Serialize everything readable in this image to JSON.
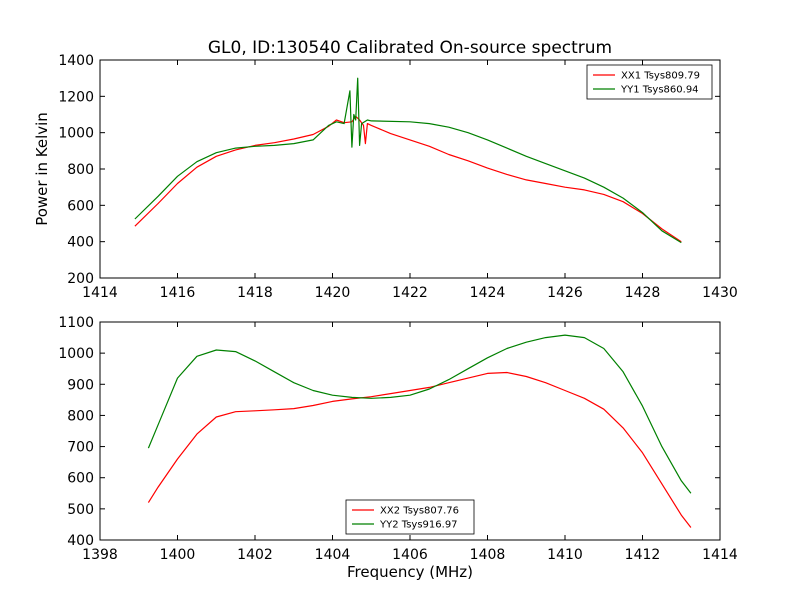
{
  "chart_data": [
    {
      "type": "line",
      "title": "GL0, ID:130540 Calibrated On-source spectrum",
      "xlabel": "",
      "ylabel": "Power in Kelvin",
      "xlim": [
        1414,
        1430
      ],
      "ylim": [
        200,
        1400
      ],
      "xticks": [
        "1414",
        "1416",
        "1418",
        "1420",
        "1422",
        "1424",
        "1426",
        "1428",
        "1430"
      ],
      "yticks": [
        "200",
        "400",
        "600",
        "800",
        "1000",
        "1200",
        "1400"
      ],
      "legend_position": "top-right",
      "series": [
        {
          "name": "XX1 Tsys809.79",
          "color": "#ff0000",
          "points": [
            [
              1414.9,
              485
            ],
            [
              1415.5,
              610
            ],
            [
              1416,
              720
            ],
            [
              1416.5,
              810
            ],
            [
              1417,
              870
            ],
            [
              1417.5,
              905
            ],
            [
              1418,
              930
            ],
            [
              1418.5,
              945
            ],
            [
              1419,
              965
            ],
            [
              1419.5,
              990
            ],
            [
              1419.9,
              1035
            ],
            [
              1420.1,
              1070
            ],
            [
              1420.3,
              1055
            ],
            [
              1420.5,
              1060
            ],
            [
              1420.6,
              1090
            ],
            [
              1420.7,
              1070
            ],
            [
              1420.8,
              1040
            ],
            [
              1420.85,
              940
            ],
            [
              1420.9,
              1050
            ],
            [
              1421,
              1040
            ],
            [
              1421.5,
              995
            ],
            [
              1422,
              960
            ],
            [
              1422.5,
              925
            ],
            [
              1423,
              880
            ],
            [
              1423.5,
              845
            ],
            [
              1424,
              805
            ],
            [
              1424.5,
              770
            ],
            [
              1425,
              740
            ],
            [
              1425.5,
              720
            ],
            [
              1426,
              700
            ],
            [
              1426.5,
              685
            ],
            [
              1427,
              660
            ],
            [
              1427.5,
              620
            ],
            [
              1428,
              555
            ],
            [
              1428.5,
              470
            ],
            [
              1429,
              400
            ]
          ]
        },
        {
          "name": "YY1 Tsys860.94",
          "color": "#008000",
          "points": [
            [
              1414.9,
              525
            ],
            [
              1415.5,
              650
            ],
            [
              1416,
              760
            ],
            [
              1416.5,
              840
            ],
            [
              1417,
              890
            ],
            [
              1417.5,
              915
            ],
            [
              1418,
              925
            ],
            [
              1418.5,
              930
            ],
            [
              1419,
              940
            ],
            [
              1419.5,
              960
            ],
            [
              1419.9,
              1040
            ],
            [
              1420.1,
              1060
            ],
            [
              1420.3,
              1050
            ],
            [
              1420.45,
              1230
            ],
            [
              1420.5,
              920
            ],
            [
              1420.55,
              1100
            ],
            [
              1420.6,
              1070
            ],
            [
              1420.65,
              1300
            ],
            [
              1420.7,
              930
            ],
            [
              1420.75,
              1050
            ],
            [
              1420.9,
              1070
            ],
            [
              1421,
              1065
            ],
            [
              1422,
              1060
            ],
            [
              1422.5,
              1050
            ],
            [
              1423,
              1030
            ],
            [
              1423.5,
              1000
            ],
            [
              1424,
              960
            ],
            [
              1424.5,
              915
            ],
            [
              1425,
              870
            ],
            [
              1425.5,
              830
            ],
            [
              1426,
              790
            ],
            [
              1426.5,
              750
            ],
            [
              1427,
              700
            ],
            [
              1427.5,
              640
            ],
            [
              1428,
              560
            ],
            [
              1428.5,
              460
            ],
            [
              1429,
              395
            ]
          ]
        }
      ]
    },
    {
      "type": "line",
      "title": "",
      "xlabel": "Frequency (MHz)",
      "ylabel": "",
      "xlim": [
        1398,
        1414
      ],
      "ylim": [
        400,
        1100
      ],
      "xticks": [
        "1398",
        "1400",
        "1402",
        "1404",
        "1406",
        "1408",
        "1410",
        "1412",
        "1414"
      ],
      "yticks": [
        "400",
        "500",
        "600",
        "700",
        "800",
        "900",
        "1000",
        "1100"
      ],
      "legend_position": "bottom-center",
      "series": [
        {
          "name": "XX2 Tsys807.76",
          "color": "#ff0000",
          "points": [
            [
              1399.25,
              520
            ],
            [
              1399.5,
              570
            ],
            [
              1400,
              660
            ],
            [
              1400.5,
              740
            ],
            [
              1401,
              795
            ],
            [
              1401.5,
              812
            ],
            [
              1402,
              815
            ],
            [
              1402.5,
              818
            ],
            [
              1403,
              822
            ],
            [
              1403.5,
              832
            ],
            [
              1404,
              845
            ],
            [
              1404.5,
              853
            ],
            [
              1405,
              860
            ],
            [
              1405.5,
              870
            ],
            [
              1406,
              880
            ],
            [
              1406.5,
              890
            ],
            [
              1407,
              905
            ],
            [
              1407.5,
              920
            ],
            [
              1408,
              935
            ],
            [
              1408.5,
              938
            ],
            [
              1409,
              925
            ],
            [
              1409.5,
              905
            ],
            [
              1410,
              880
            ],
            [
              1410.5,
              855
            ],
            [
              1411,
              820
            ],
            [
              1411.5,
              760
            ],
            [
              1412,
              680
            ],
            [
              1412.5,
              580
            ],
            [
              1413,
              480
            ],
            [
              1413.25,
              440
            ]
          ]
        },
        {
          "name": "YY2 Tsys916.97",
          "color": "#008000",
          "points": [
            [
              1399.25,
              695
            ],
            [
              1399.5,
              770
            ],
            [
              1400,
              920
            ],
            [
              1400.5,
              990
            ],
            [
              1401,
              1010
            ],
            [
              1401.5,
              1005
            ],
            [
              1402,
              975
            ],
            [
              1402.5,
              940
            ],
            [
              1403,
              905
            ],
            [
              1403.5,
              880
            ],
            [
              1404,
              865
            ],
            [
              1404.5,
              858
            ],
            [
              1405,
              855
            ],
            [
              1405.5,
              858
            ],
            [
              1406,
              865
            ],
            [
              1406.5,
              885
            ],
            [
              1407,
              915
            ],
            [
              1407.5,
              950
            ],
            [
              1408,
              985
            ],
            [
              1408.5,
              1015
            ],
            [
              1409,
              1035
            ],
            [
              1409.5,
              1050
            ],
            [
              1410,
              1058
            ],
            [
              1410.5,
              1050
            ],
            [
              1411,
              1015
            ],
            [
              1411.5,
              940
            ],
            [
              1412,
              830
            ],
            [
              1412.5,
              700
            ],
            [
              1413,
              590
            ],
            [
              1413.25,
              550
            ]
          ]
        }
      ]
    }
  ]
}
